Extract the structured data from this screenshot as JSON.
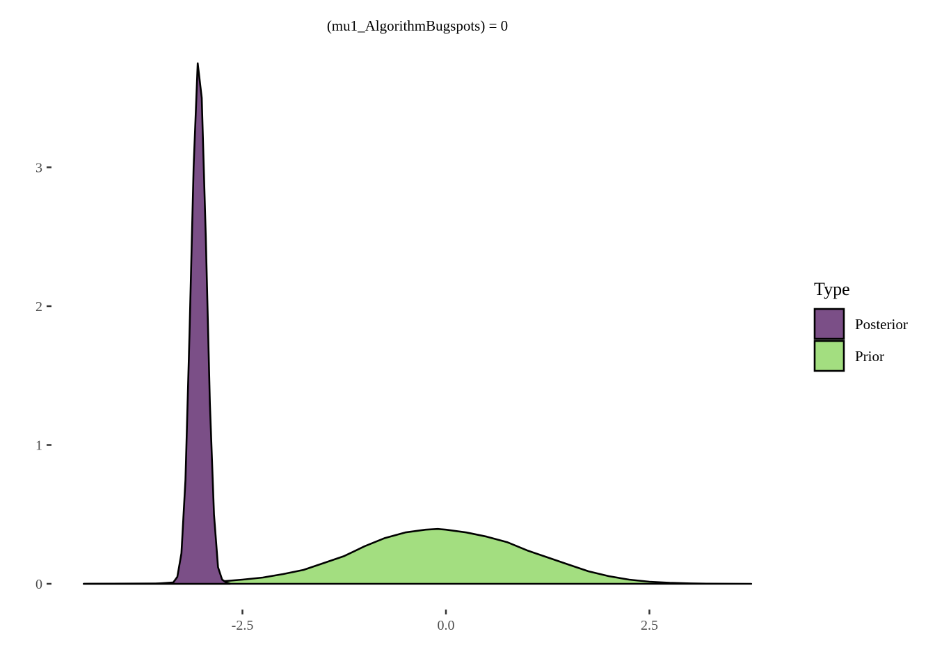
{
  "chart_data": {
    "type": "area",
    "title": "(mu1_AlgorithmBugspots) = 0",
    "xlabel": "",
    "ylabel": "",
    "xlim": [
      -4.5,
      3.75
    ],
    "ylim": [
      -0.18,
      3.85
    ],
    "x_ticks": [
      -2.5,
      0.0,
      2.5
    ],
    "x_tick_labels": [
      "-2.5",
      "0.0",
      "2.5"
    ],
    "y_ticks": [
      0,
      1,
      2,
      3
    ],
    "y_tick_labels": [
      "0",
      "1",
      "2",
      "3"
    ],
    "grid": false,
    "legend": {
      "title": "Type",
      "placement": "right"
    },
    "series": [
      {
        "name": "Posterior",
        "color": "#7B4F87",
        "x": [
          -4.45,
          -3.6,
          -3.35,
          -3.3,
          -3.25,
          -3.2,
          -3.15,
          -3.1,
          -3.05,
          -3.0,
          -2.95,
          -2.9,
          -2.85,
          -2.8,
          -2.75,
          -2.7,
          -2.65
        ],
        "y": [
          0.0,
          0.0,
          0.01,
          0.05,
          0.22,
          0.75,
          1.8,
          3.0,
          3.75,
          3.5,
          2.5,
          1.3,
          0.5,
          0.12,
          0.03,
          0.01,
          0.0
        ]
      },
      {
        "name": "Prior",
        "color": "#A3DE80",
        "x": [
          -4.45,
          -3.5,
          -3.0,
          -2.75,
          -2.5,
          -2.25,
          -2.0,
          -1.75,
          -1.5,
          -1.25,
          -1.0,
          -0.75,
          -0.5,
          -0.25,
          -0.1,
          0.0,
          0.25,
          0.5,
          0.75,
          1.0,
          1.25,
          1.5,
          1.75,
          2.0,
          2.25,
          2.5,
          2.75,
          3.0,
          3.2,
          3.75
        ],
        "y": [
          0.0,
          0.002,
          0.008,
          0.018,
          0.03,
          0.045,
          0.07,
          0.1,
          0.15,
          0.2,
          0.27,
          0.33,
          0.37,
          0.39,
          0.395,
          0.39,
          0.37,
          0.34,
          0.3,
          0.24,
          0.19,
          0.14,
          0.09,
          0.055,
          0.03,
          0.015,
          0.007,
          0.003,
          0.001,
          0.0
        ]
      }
    ]
  }
}
